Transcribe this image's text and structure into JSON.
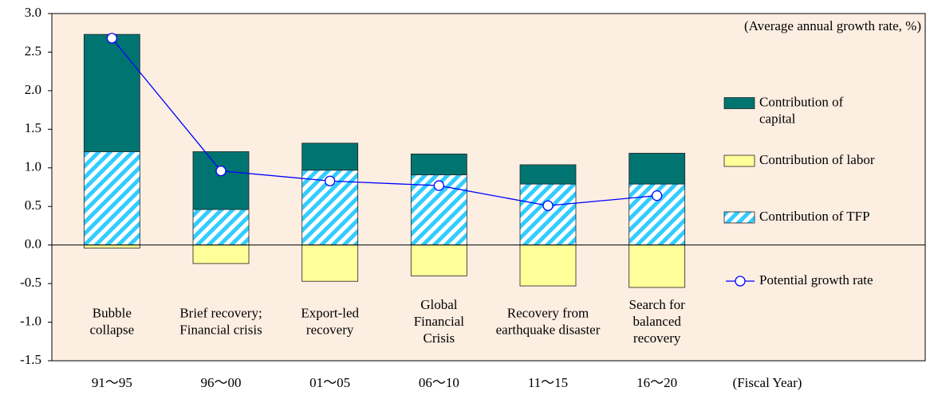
{
  "chart_data": {
    "type": "bar",
    "unit_note": "(Average annual growth rate, %)",
    "x_axis_label": "(Fiscal Year)",
    "categories": [
      "91～95",
      "96～00",
      "01～05",
      "06～10",
      "11～15",
      "16～20"
    ],
    "period_labels": [
      "Bubble\ncollapse",
      "Brief recovery;\nFinancial crisis",
      "Export-led\nrecovery",
      "Global\nFinancial\nCrisis",
      "Recovery from\nearthquake disaster",
      "Search for\nbalanced\nrecovery"
    ],
    "series": [
      {
        "name": "Contribution of\ncapital",
        "color": "#007470",
        "values": [
          1.52,
          0.75,
          0.35,
          0.27,
          0.25,
          0.4
        ]
      },
      {
        "name": "Contribution of labor",
        "color": "#ffff99",
        "values": [
          -0.04,
          -0.24,
          -0.47,
          -0.4,
          -0.53,
          -0.55
        ]
      },
      {
        "name": "Contribution of TFP",
        "color": "#33ccff",
        "pattern": "diagonal",
        "values": [
          1.21,
          0.46,
          0.97,
          0.91,
          0.79,
          0.79
        ]
      },
      {
        "name": "Potential growth rate",
        "type": "line",
        "color": "#0000ff",
        "values": [
          2.68,
          0.96,
          0.83,
          0.77,
          0.51,
          0.64
        ]
      }
    ],
    "ylim": [
      -1.5,
      3.0
    ],
    "yticks": [
      {
        "value": -1.5,
        "label": "-1.5"
      },
      {
        "value": -1.0,
        "label": "-1.0"
      },
      {
        "value": -0.5,
        "label": "-0.5"
      },
      {
        "value": 0,
        "label": "0.0"
      },
      0.5,
      {
        "value": 1.0,
        "label": "1.0"
      },
      1.5,
      {
        "value": 2.0,
        "label": "2.0"
      },
      2.5,
      {
        "value": 3.0,
        "label": "3.0"
      }
    ],
    "background": "#fdeee2"
  }
}
